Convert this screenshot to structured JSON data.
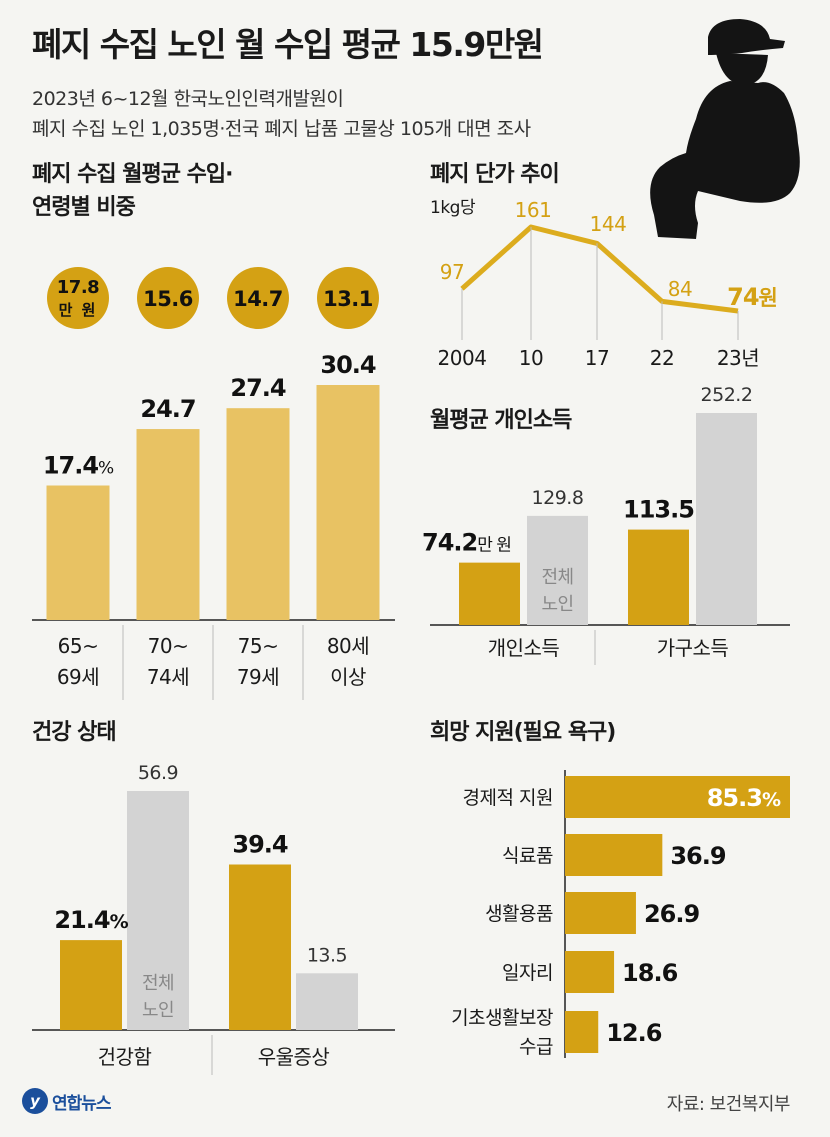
{
  "header": {
    "title": "폐지 수집 노인 월 수입 평균 15.9만원",
    "subtitle_1": "2023년 6~12월 한국노인인력개발원이",
    "subtitle_2": "폐지 수집 노인 1,035명·전국 폐지 납품 고물상 105개 대면 조사"
  },
  "sections": {
    "income_by_age_title_1": "폐지 수집 월평균 수입·",
    "income_by_age_title_2": "연령별 비중",
    "price_trend_title": "폐지 단가 추이",
    "price_unit": "1kg당",
    "personal_income_title": "월평균 개인소득",
    "health_title": "건강 상태",
    "support_title": "희망 지원(필요 욕구)"
  },
  "footer": {
    "logo_text": "연합뉴스",
    "source": "자료: 보건복지부"
  },
  "colors": {
    "gold": "#d4a114",
    "gold_light": "#e8c263",
    "gray": "#d3d3d3",
    "line": "#dcac1e"
  },
  "chart_data": [
    {
      "id": "age",
      "type": "bar",
      "title": "폐지 수집 월평균 수입·연령별 비중",
      "categories": [
        "65~69세",
        "70~74세",
        "75~79세",
        "80세 이상"
      ],
      "category_lines": [
        [
          "65~",
          "69세"
        ],
        [
          "70~",
          "74세"
        ],
        [
          "75~",
          "79세"
        ],
        [
          "80세",
          "이상"
        ]
      ],
      "series": [
        {
          "name": "비중(%)",
          "values": [
            17.4,
            24.7,
            27.4,
            30.4
          ]
        }
      ],
      "value_labels": [
        "17.4",
        "24.7",
        "27.4",
        "30.4"
      ],
      "first_value_unit": "%",
      "monthly_income": [
        "17.8",
        "15.6",
        "14.7",
        "13.1"
      ],
      "income_unit": "만 원",
      "ylim": [
        0,
        32
      ]
    },
    {
      "id": "price",
      "type": "line",
      "title": "폐지 단가 추이",
      "x": [
        "2004",
        "10",
        "17",
        "22",
        "23년"
      ],
      "series": [
        {
          "values": [
            97,
            161,
            144,
            84,
            74
          ]
        }
      ],
      "value_labels": [
        "97",
        "161",
        "144",
        "84",
        "74"
      ],
      "last_value_unit": "원",
      "ylim": [
        60,
        175
      ]
    },
    {
      "id": "personal",
      "type": "bar",
      "title": "월평균 개인소득",
      "categories": [
        "개인소득",
        "가구소득"
      ],
      "series": [
        {
          "values": [
            74.2,
            113.5
          ],
          "labels": [
            "74.2",
            "113.5"
          ]
        },
        {
          "name": "전체 노인",
          "values": [
            129.8,
            252.2
          ],
          "labels": [
            "129.8",
            "252.2"
          ]
        }
      ],
      "unit": "만 원",
      "ylim": [
        0,
        260
      ]
    },
    {
      "id": "health",
      "type": "bar",
      "title": "건강 상태",
      "categories": [
        "건강함",
        "우울증상"
      ],
      "series": [
        {
          "values": [
            21.4,
            39.4
          ],
          "labels": [
            "21.4",
            "39.4"
          ]
        },
        {
          "name": "전체 노인",
          "values": [
            56.9,
            13.5
          ],
          "labels": [
            "56.9",
            "13.5"
          ]
        }
      ],
      "unit": "%",
      "ylim": [
        0,
        60
      ]
    },
    {
      "id": "support",
      "type": "bar",
      "orientation": "horizontal",
      "title": "희망 지원(필요 욕구)",
      "categories": [
        "경제적 지원",
        "식료품",
        "생활용품",
        "일자리",
        "기초생활보장 수급"
      ],
      "category_lines": [
        [
          "경제적 지원"
        ],
        [
          "식료품"
        ],
        [
          "생활용품"
        ],
        [
          "일자리"
        ],
        [
          "기초생활보장",
          "수급"
        ]
      ],
      "series": [
        {
          "values": [
            85.3,
            36.9,
            26.9,
            18.6,
            12.6
          ]
        }
      ],
      "value_labels": [
        "85.3",
        "36.9",
        "26.9",
        "18.6",
        "12.6"
      ],
      "first_value_unit": "%",
      "xlim": [
        0,
        85.3
      ]
    }
  ]
}
